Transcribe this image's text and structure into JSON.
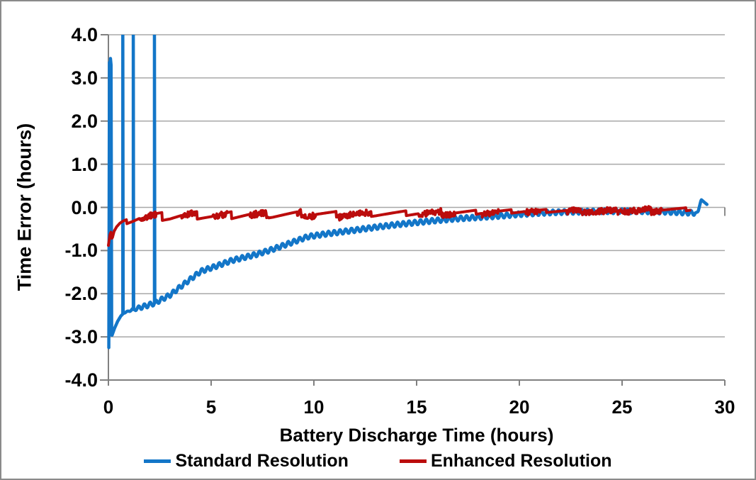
{
  "figure": {
    "background": "#FFFFFF",
    "border_color": "#8A8A8A",
    "grid_color": "#A8A8A8",
    "axis_color": "#808080",
    "text_color": "#000000"
  },
  "chart_data": {
    "type": "line",
    "title": "",
    "xlabel": "Battery Discharge Time (hours)",
    "ylabel": "Time Error (hours)",
    "xlim": [
      0,
      30
    ],
    "ylim": [
      -4.0,
      4.0
    ],
    "x_ticks": [
      0,
      5,
      10,
      15,
      20,
      25,
      30
    ],
    "y_ticks": [
      "4.0",
      "3.0",
      "2.0",
      "1.0",
      "0.0",
      "-1.0",
      "-2.0",
      "-3.0",
      "-4.0"
    ],
    "y_tick_values": [
      4,
      3,
      2,
      1,
      0,
      -1,
      -2,
      -3,
      -4
    ],
    "grid": "horizontal",
    "legend_position": "bottom",
    "series": [
      {
        "name": "Standard Resolution",
        "color": "#1376C8",
        "line_width": 4.5,
        "initial_spike_profile": [
          [
            0.02,
            -3.25
          ],
          [
            0.05,
            3.36
          ],
          [
            0.07,
            3.26
          ],
          [
            0.1,
            3.45
          ],
          [
            0.13,
            3.3
          ],
          [
            0.16,
            -2.96
          ]
        ],
        "clipped_spike_times": [
          0.7,
          1.21,
          2.24
        ],
        "clipped_spike_top": 4.4,
        "trend": [
          [
            0,
            -3.27
          ],
          [
            0.15,
            -3.0
          ],
          [
            0.3,
            -2.8
          ],
          [
            0.45,
            -2.64
          ],
          [
            0.6,
            -2.52
          ],
          [
            0.72,
            -2.46
          ],
          [
            0.9,
            -2.42
          ],
          [
            1.1,
            -2.38
          ],
          [
            1.35,
            -2.35
          ],
          [
            1.6,
            -2.31
          ],
          [
            1.9,
            -2.27
          ],
          [
            2.24,
            -2.22
          ],
          [
            2.6,
            -2.13
          ],
          [
            3.0,
            -2.03
          ],
          [
            3.45,
            -1.86
          ],
          [
            4.0,
            -1.66
          ],
          [
            4.5,
            -1.48
          ],
          [
            5.2,
            -1.37
          ],
          [
            6.0,
            -1.23
          ],
          [
            7.2,
            -1.09
          ],
          [
            8.0,
            -0.97
          ],
          [
            9.0,
            -0.8
          ],
          [
            9.7,
            -0.68
          ],
          [
            10.5,
            -0.62
          ],
          [
            11.3,
            -0.57
          ],
          [
            12.1,
            -0.52
          ],
          [
            13.0,
            -0.46
          ],
          [
            14.0,
            -0.4
          ],
          [
            15.0,
            -0.35
          ],
          [
            16.0,
            -0.3
          ],
          [
            17.0,
            -0.26
          ],
          [
            18.0,
            -0.23
          ],
          [
            19.0,
            -0.2
          ],
          [
            20.0,
            -0.16
          ],
          [
            21.0,
            -0.13
          ],
          [
            22.0,
            -0.11
          ],
          [
            23.0,
            -0.1
          ],
          [
            24.0,
            -0.09
          ],
          [
            25.0,
            -0.09
          ],
          [
            26.0,
            -0.09
          ],
          [
            27.0,
            -0.1
          ],
          [
            28.0,
            -0.12
          ],
          [
            28.55,
            -0.13
          ],
          [
            28.7,
            -0.1
          ],
          [
            28.85,
            0.18
          ],
          [
            29.0,
            0.12
          ],
          [
            29.15,
            0.06
          ]
        ],
        "ripple": {
          "period_hours": 0.28,
          "amplitude": 0.055,
          "ramp_start": 0.75,
          "ramp_full": 1.6,
          "end": 28.55
        }
      },
      {
        "name": "Enhanced Resolution",
        "color": "#BB0C0C",
        "line_width": 4,
        "trend": [
          [
            0,
            -0.88
          ],
          [
            0.08,
            -0.62
          ],
          [
            0.13,
            -0.57
          ],
          [
            0.18,
            -0.73
          ],
          [
            0.28,
            -0.55
          ],
          [
            0.4,
            -0.45
          ],
          [
            0.55,
            -0.37
          ],
          [
            0.7,
            -0.32
          ],
          [
            0.9,
            -0.28
          ],
          [
            1.2,
            -0.26
          ],
          [
            1.6,
            -0.22
          ],
          [
            2.0,
            -0.2
          ],
          [
            2.5,
            -0.21
          ],
          [
            3.0,
            -0.22
          ],
          [
            3.5,
            -0.2
          ],
          [
            4.0,
            -0.18
          ],
          [
            4.5,
            -0.19
          ],
          [
            5.0,
            -0.2
          ],
          [
            5.5,
            -0.19
          ],
          [
            6.0,
            -0.18
          ],
          [
            6.5,
            -0.17
          ],
          [
            7.0,
            -0.16
          ],
          [
            7.5,
            -0.17
          ],
          [
            8.0,
            -0.18
          ],
          [
            8.5,
            -0.17
          ],
          [
            9.0,
            -0.16
          ],
          [
            10.0,
            -0.15
          ],
          [
            11.0,
            -0.16
          ],
          [
            12.0,
            -0.14
          ],
          [
            13.0,
            -0.15
          ],
          [
            14.0,
            -0.14
          ],
          [
            15.0,
            -0.13
          ],
          [
            16.0,
            -0.12
          ],
          [
            17.0,
            -0.12
          ],
          [
            18.0,
            -0.11
          ],
          [
            19.0,
            -0.1
          ],
          [
            20.0,
            -0.09
          ],
          [
            21.0,
            -0.085
          ],
          [
            22.0,
            -0.08
          ],
          [
            23.0,
            -0.075
          ],
          [
            24.0,
            -0.07
          ],
          [
            25.0,
            -0.065
          ],
          [
            26.0,
            -0.06
          ],
          [
            27.0,
            -0.05
          ],
          [
            28.0,
            -0.045
          ],
          [
            28.3,
            -0.04
          ]
        ],
        "sawtooth": {
          "start": 0.9,
          "period_hours": 1.7,
          "amplitude_start": 0.1,
          "amplitude_min": 0.035,
          "amplitude_decay_per_hour": 0.003
        },
        "noise_intervals": [
          [
            1.5,
            2.3
          ],
          [
            3.55,
            4.2
          ],
          [
            5.1,
            5.8
          ],
          [
            6.9,
            7.8
          ],
          [
            9.2,
            10.1
          ],
          [
            11.2,
            12.8
          ],
          [
            15.1,
            16.9
          ],
          [
            18.2,
            19.0
          ],
          [
            20.3,
            21.0
          ],
          [
            22.3,
            26.9
          ]
        ],
        "noise_amplitude": 0.07,
        "end": 28.3
      }
    ]
  },
  "y_axis": {
    "title": "Time Error (hours)"
  },
  "x_axis": {
    "title": "Battery Discharge Time (hours)"
  },
  "legend": {
    "items": [
      {
        "label": "Standard Resolution",
        "color": "#1376C8"
      },
      {
        "label": "Enhanced Resolution",
        "color": "#BB0C0C"
      }
    ]
  }
}
